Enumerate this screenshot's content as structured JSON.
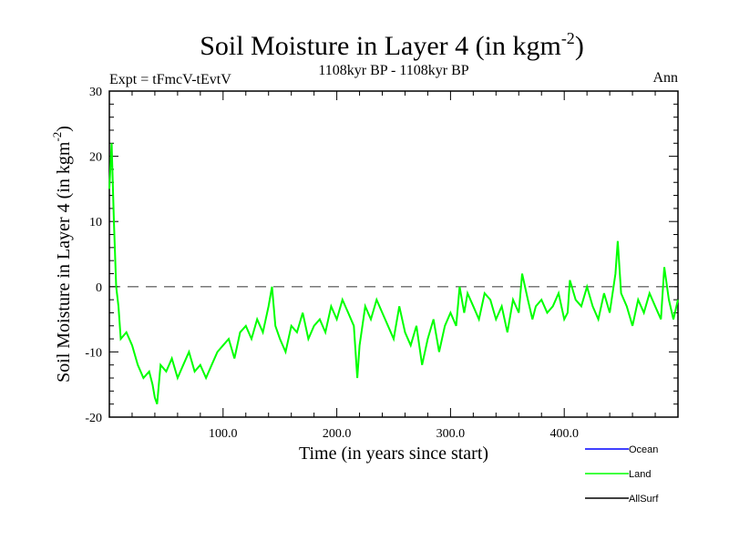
{
  "chart_data": {
    "type": "line",
    "title_main": "Soil Moisture in Layer 4 (in kgm",
    "title_sup": "-2",
    "title_close": ")",
    "subtitle": "1108kyr BP - 1108kyr BP",
    "expt_label": "Expt = tFmcV-tEvtV",
    "season_label": "Ann",
    "xlabel": "Time (in years since start)",
    "ylabel_main": "Soil Moisture in Layer 4 (in kgm",
    "ylabel_sup": "-2",
    "ylabel_close": ")",
    "xlim": [
      0,
      500
    ],
    "ylim": [
      -20,
      30
    ],
    "x_ticks": [
      {
        "value": 100,
        "label": "100.0"
      },
      {
        "value": 200,
        "label": "200.0"
      },
      {
        "value": 300,
        "label": "300.0"
      },
      {
        "value": 400,
        "label": "400.0"
      }
    ],
    "y_ticks": [
      {
        "value": -20,
        "label": "-20"
      },
      {
        "value": -10,
        "label": "-10"
      },
      {
        "value": 0,
        "label": "0"
      },
      {
        "value": 10,
        "label": "10"
      },
      {
        "value": 20,
        "label": "20"
      },
      {
        "value": 30,
        "label": "30"
      }
    ],
    "reference_line": {
      "value": 0,
      "style": "dashed"
    },
    "legend": [
      {
        "name": "Ocean",
        "color": "#0000ff"
      },
      {
        "name": "Land",
        "color": "#00ff00"
      },
      {
        "name": "AllSurf",
        "color": "#000000"
      }
    ],
    "series": [
      {
        "name": "Land",
        "color": "#00ff00",
        "x": [
          0,
          2,
          4,
          6,
          8,
          10,
          15,
          20,
          25,
          30,
          35,
          38,
          40,
          42,
          45,
          50,
          55,
          60,
          65,
          70,
          75,
          80,
          85,
          90,
          95,
          100,
          105,
          110,
          115,
          120,
          125,
          130,
          135,
          140,
          143,
          146,
          150,
          155,
          160,
          165,
          170,
          175,
          180,
          185,
          190,
          195,
          200,
          205,
          210,
          215,
          218,
          220,
          225,
          230,
          235,
          240,
          245,
          250,
          255,
          260,
          265,
          270,
          275,
          280,
          285,
          290,
          295,
          300,
          305,
          308,
          312,
          315,
          320,
          325,
          330,
          335,
          340,
          345,
          350,
          355,
          360,
          363,
          368,
          372,
          375,
          380,
          385,
          390,
          395,
          400,
          403,
          405,
          410,
          415,
          420,
          425,
          430,
          435,
          440,
          445,
          447,
          450,
          455,
          460,
          465,
          470,
          475,
          480,
          485,
          488,
          492,
          496,
          500
        ],
        "values": [
          15,
          22,
          10,
          0,
          -3,
          -8,
          -7,
          -9,
          -12,
          -14,
          -13,
          -15,
          -17,
          -18,
          -12,
          -13,
          -11,
          -14,
          -12,
          -10,
          -13,
          -12,
          -14,
          -12,
          -10,
          -9,
          -8,
          -11,
          -7,
          -6,
          -8,
          -5,
          -7,
          -3,
          0,
          -6,
          -8,
          -10,
          -6,
          -7,
          -4,
          -8,
          -6,
          -5,
          -7,
          -3,
          -5,
          -2,
          -4,
          -6,
          -14,
          -9,
          -3,
          -5,
          -2,
          -4,
          -6,
          -8,
          -3,
          -7,
          -9,
          -6,
          -12,
          -8,
          -5,
          -10,
          -6,
          -4,
          -6,
          0,
          -4,
          -1,
          -3,
          -5,
          -1,
          -2,
          -5,
          -3,
          -7,
          -2,
          -4,
          2,
          -2,
          -5,
          -3,
          -2,
          -4,
          -3,
          -1,
          -5,
          -4,
          1,
          -2,
          -3,
          0,
          -3,
          -5,
          -1,
          -4,
          2,
          7,
          -1,
          -3,
          -6,
          -2,
          -4,
          -1,
          -3,
          -5,
          3,
          -2,
          -5,
          -2
        ]
      }
    ]
  }
}
